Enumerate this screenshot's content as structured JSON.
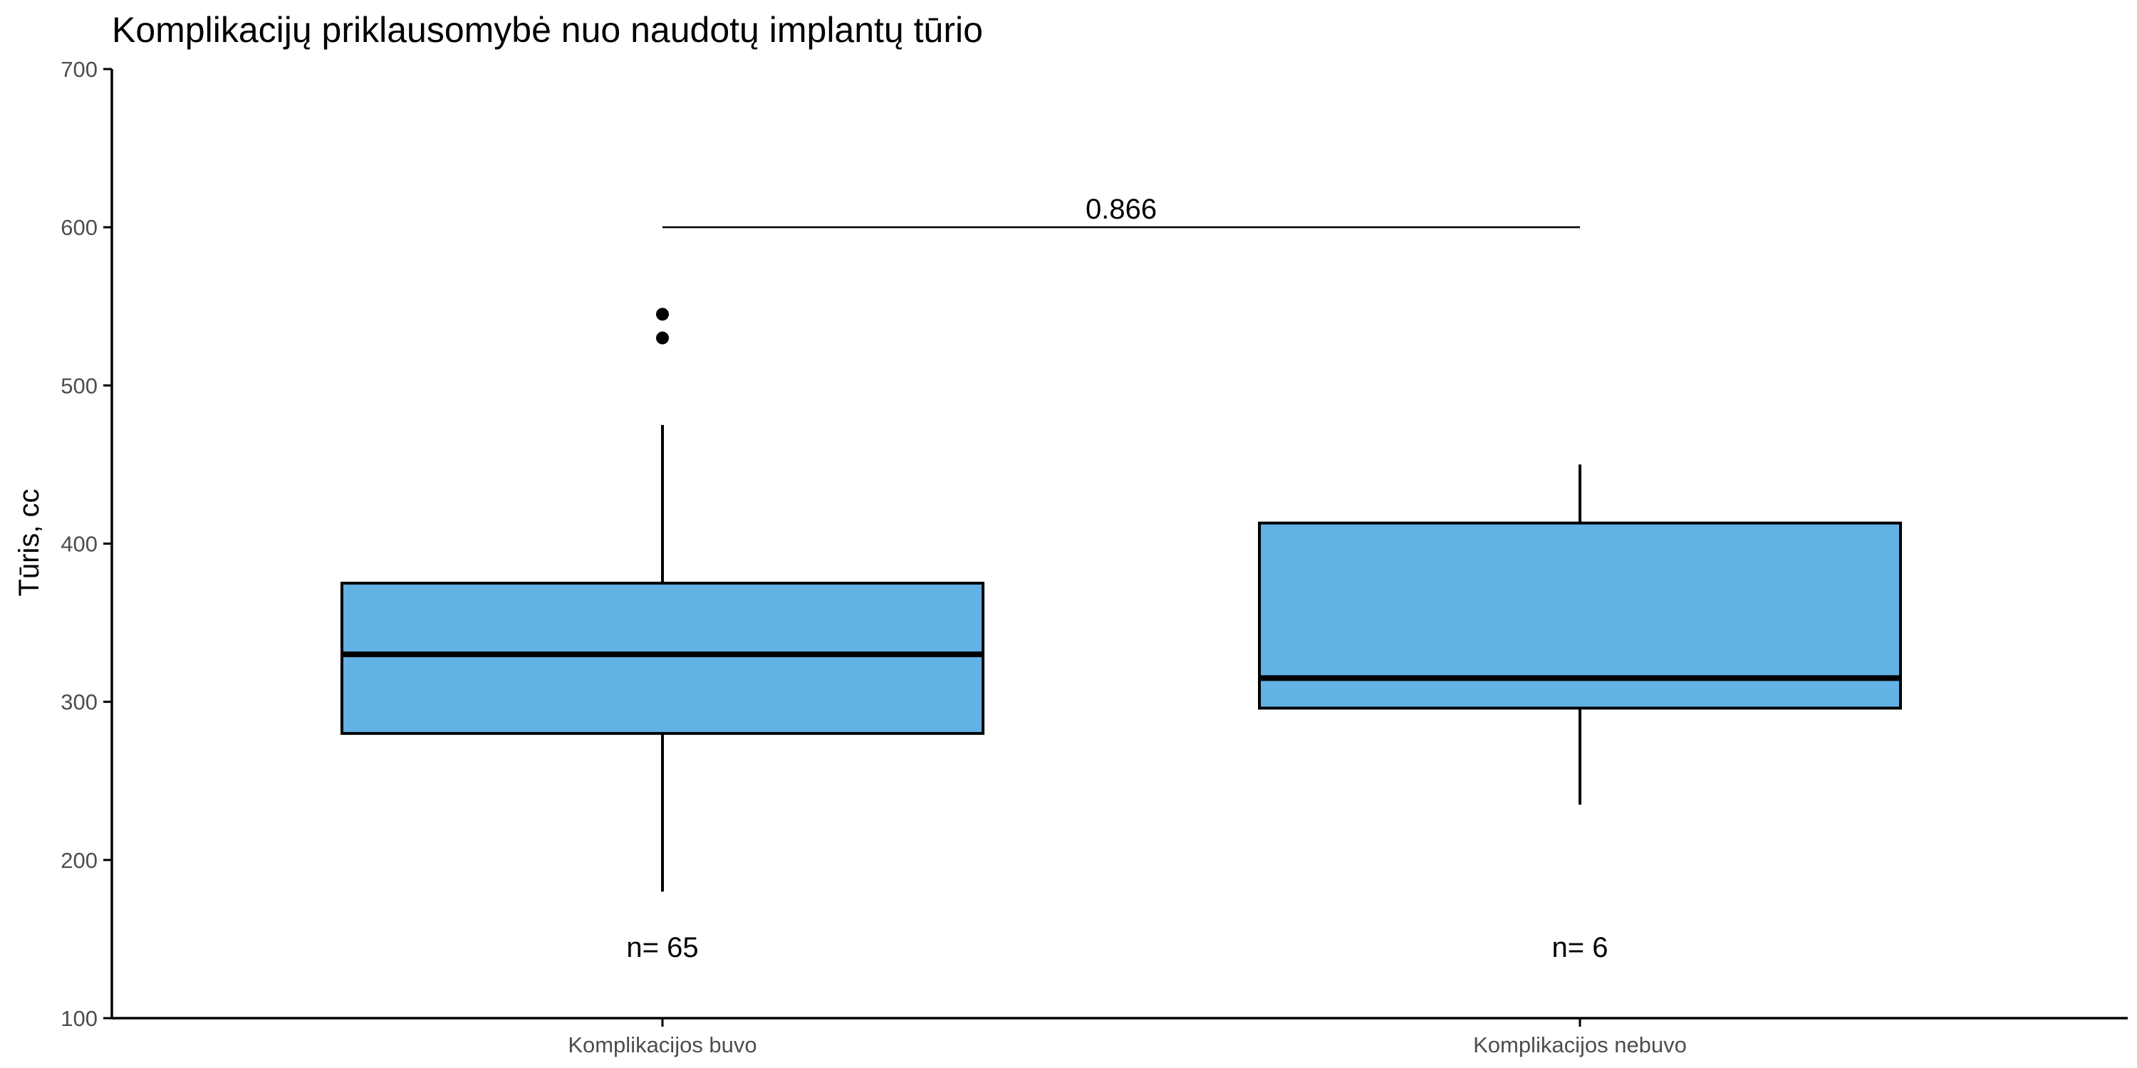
{
  "chart_data": {
    "type": "box",
    "title": "Komplikacijų priklausomybė nuo naudotų implantų tūrio",
    "xlabel": "",
    "ylabel": "Tūris, cc",
    "ylim": [
      100,
      700
    ],
    "yticks": [
      100,
      200,
      300,
      400,
      500,
      600,
      700
    ],
    "grid": false,
    "legend": "none",
    "fill_color": "#62B2E5",
    "categories": [
      "Komplikacijos buvo",
      "Komplikacijos nebuvo"
    ],
    "boxes": [
      {
        "category": "Komplikacijos buvo",
        "whisker_low": 180,
        "q1": 280,
        "median": 330,
        "q3": 375,
        "whisker_high": 475,
        "outliers": [
          530,
          545
        ],
        "n_label": "n= 65",
        "n_label_y": 145
      },
      {
        "category": "Komplikacijos nebuvo",
        "whisker_low": 235,
        "q1": 296,
        "median": 315,
        "q3": 413,
        "whisker_high": 450,
        "outliers": [],
        "n_label": "n= 6",
        "n_label_y": 145
      }
    ],
    "comparison": {
      "from": "Komplikacijos buvo",
      "to": "Komplikacijos nebuvo",
      "y": 600,
      "label": "0.866"
    }
  }
}
